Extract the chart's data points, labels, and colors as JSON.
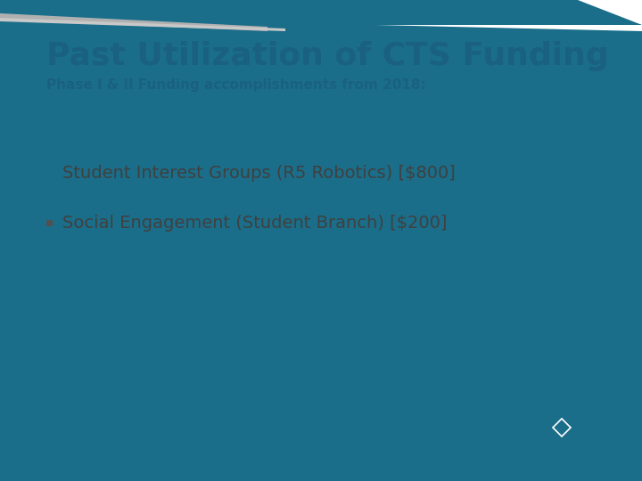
{
  "title": "Past Utilization of CTS Funding",
  "subtitle": "Phase I & II Funding accomplishments from 2018:",
  "bullet1": "Student Interest Groups (R5 Robotics) [$800]",
  "bullet2": "Social Engagement (Student Branch) [$200]",
  "title_color": "#1a6080",
  "subtitle_color": "#1a6080",
  "bullet_color": "#404040",
  "background_color": "#ffffff",
  "header_bar_color": "#1a6e8a",
  "footer_bar_color": "#1a6e8a",
  "gray_color": "#b0b0b0",
  "ieee_color": "#1a6e8a",
  "title_fontsize": 26,
  "subtitle_fontsize": 11,
  "bullet_fontsize": 14
}
